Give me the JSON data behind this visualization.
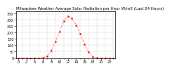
{
  "title": "Milwaukee Weather Average Solar Radiation per Hour W/m2 (Last 24 Hours)",
  "hours": [
    0,
    1,
    2,
    3,
    4,
    5,
    6,
    7,
    8,
    9,
    10,
    11,
    12,
    13,
    14,
    15,
    16,
    17,
    18,
    19,
    20,
    21,
    22,
    23
  ],
  "values": [
    0,
    0,
    0,
    0,
    0,
    0,
    2,
    15,
    60,
    130,
    210,
    290,
    330,
    310,
    260,
    190,
    110,
    45,
    10,
    1,
    0,
    0,
    0,
    0
  ],
  "line_color": "red",
  "bg_color": "#ffffff",
  "grid_color": "#aaaaaa",
  "ylim": [
    0,
    370
  ],
  "yticks": [
    0,
    50,
    100,
    150,
    200,
    250,
    300,
    350
  ],
  "ylabel_fontsize": 3.5,
  "xlabel_fontsize": 3.5,
  "title_fontsize": 4.0
}
